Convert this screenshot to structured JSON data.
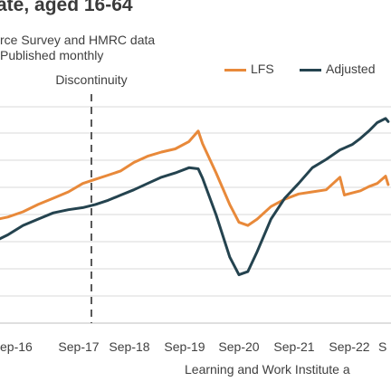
{
  "header": {
    "title": "ate, aged 16-64",
    "subtitle_line1": "rce Survey and HMRC data",
    "subtitle_line2": "Published monthly"
  },
  "source": "Learning and Work Institute a",
  "colors": {
    "lfs": "#e8893a",
    "adjusted": "#24434f",
    "grid": "#d9d9d9",
    "discontinuity": "#595959"
  },
  "chart_data": {
    "type": "line",
    "title": "",
    "xlabel": "",
    "ylabel": "",
    "legend_position": "top-right",
    "grid": true,
    "x_tick_labels": [
      "ep-16",
      "Sep-17",
      "Sep-18",
      "Sep-19",
      "Sep-20",
      "Sep-21",
      "Sep-22",
      "S"
    ],
    "annotation": {
      "label": "Discontinuity",
      "x": 2017.92
    },
    "series": [
      {
        "name": "LFS",
        "x": [
          2015.75,
          2016.0,
          2016.25,
          2016.5,
          2016.75,
          2017.0,
          2017.25,
          2017.5,
          2017.75,
          2018.0,
          2018.25,
          2018.5,
          2018.75,
          2019.0,
          2019.25,
          2019.5,
          2019.75,
          2019.92,
          2020.0,
          2020.25,
          2020.5,
          2020.67,
          2020.83,
          2021.0,
          2021.25,
          2021.5,
          2021.75,
          2022.0,
          2022.25,
          2022.5,
          2022.58,
          2022.75,
          2023.0,
          2023.25,
          2023.5,
          2023.75,
          2023.83
        ],
        "values": [
          55.0,
          55.2,
          55.5,
          55.8,
          56.3,
          57.0,
          57.6,
          58.2,
          59.0,
          59.4,
          59.8,
          60.2,
          61.0,
          61.6,
          62.0,
          62.3,
          63.0,
          64.0,
          62.8,
          60.0,
          57.0,
          55.3,
          55.0,
          55.6,
          56.8,
          57.5,
          58.0,
          58.2,
          58.4,
          59.6,
          57.9,
          58.1,
          58.3,
          58.7,
          59.0,
          59.7,
          58.9
        ]
      },
      {
        "name": "Adjusted",
        "x": [
          2015.75,
          2016.0,
          2016.25,
          2016.5,
          2016.75,
          2017.0,
          2017.25,
          2017.5,
          2017.75,
          2018.0,
          2018.25,
          2018.5,
          2018.75,
          2019.0,
          2019.25,
          2019.5,
          2019.75,
          2019.92,
          2020.0,
          2020.25,
          2020.5,
          2020.67,
          2020.83,
          2021.0,
          2021.25,
          2021.5,
          2021.75,
          2022.0,
          2022.25,
          2022.5,
          2022.75,
          2023.0,
          2023.25,
          2023.5,
          2023.75,
          2023.83
        ],
        "values": [
          52.3,
          52.8,
          53.4,
          54.1,
          55.0,
          55.6,
          56.2,
          56.5,
          56.7,
          57.0,
          57.4,
          57.9,
          58.4,
          59.0,
          59.6,
          60.0,
          60.5,
          60.4,
          59.5,
          56.0,
          52.0,
          50.3,
          50.6,
          52.5,
          55.6,
          57.6,
          59.0,
          60.5,
          61.3,
          62.2,
          62.7,
          63.3,
          64.0,
          64.8,
          65.2,
          64.9
        ]
      }
    ],
    "ylim": [
      45,
      67
    ]
  }
}
